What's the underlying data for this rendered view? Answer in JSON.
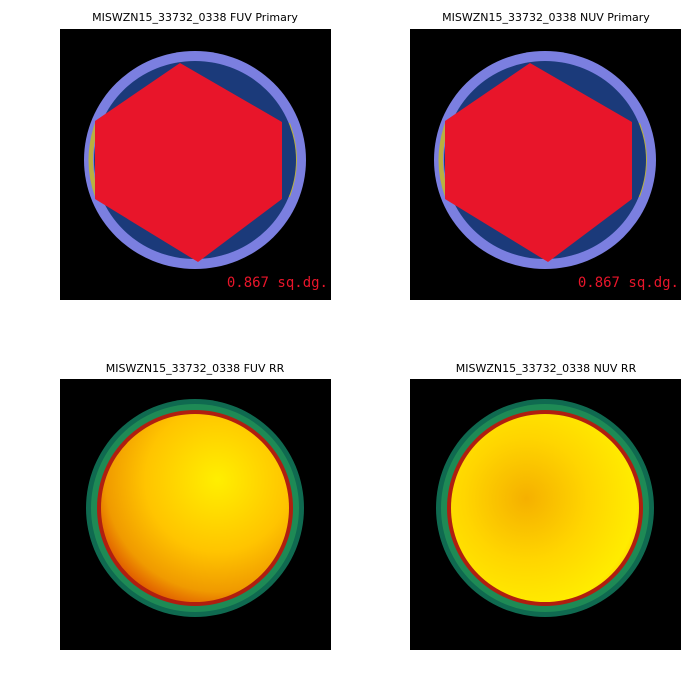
{
  "panels": [
    {
      "title": "MISWZN15_33732_0338 FUV Primary",
      "area_label": "0.867 sq.dg."
    },
    {
      "title": "MISWZN15_33732_0338 NUV Primary",
      "area_label": "0.867 sq.dg."
    },
    {
      "title": "MISWZN15_33732_0338 FUV RR"
    },
    {
      "title": "MISWZN15_33732_0338 NUV RR"
    }
  ]
}
